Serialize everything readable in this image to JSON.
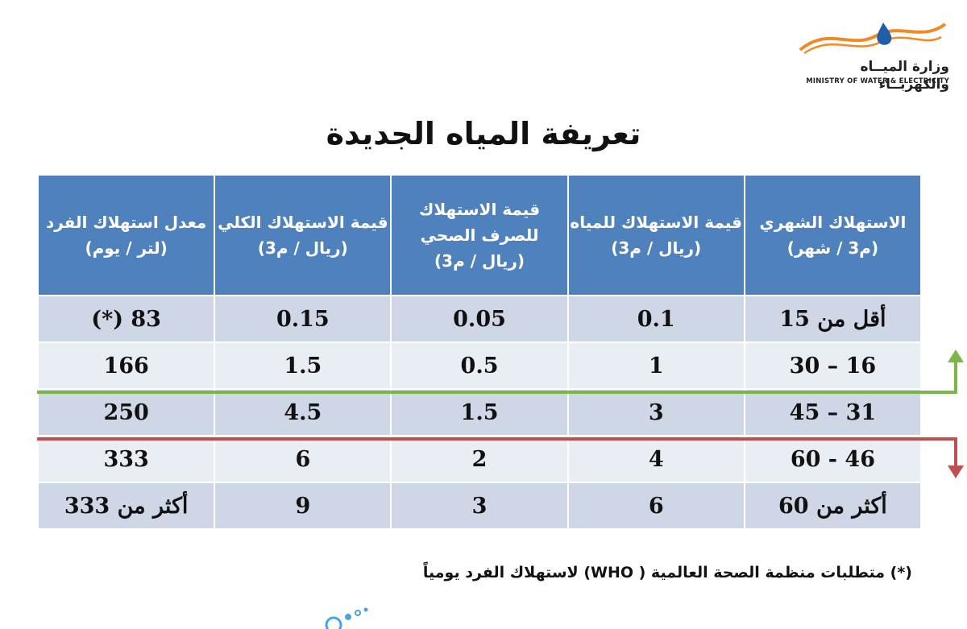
{
  "logo": {
    "name_ar": "وزارة الميــاه والكهربــاء",
    "name_en": "MINISTRY OF WATER & ELECTRICITY",
    "colors": {
      "wave": "#f08a24",
      "drop": "#1f5fa8"
    }
  },
  "title": "تعريفة المياه الجديدة",
  "table": {
    "headers": [
      {
        "label": "الاستهلاك الشهري",
        "unit": "(م3 / شهر)"
      },
      {
        "label": "قيمة الاستهلاك للمياه",
        "unit": "(ريال / م3)"
      },
      {
        "label": "قيمة الاستهلاك للصرف الصحي",
        "unit": "(ريال / م3)"
      },
      {
        "label": "قيمة الاستهلاك الكلي",
        "unit": "(ريال / م3)"
      },
      {
        "label": "معدل استهلاك الفرد",
        "unit": "(لتر / يوم)"
      }
    ],
    "rows": [
      [
        "أقل من  15",
        "0.1",
        "0.05",
        "0.15",
        "83 (*)"
      ],
      [
        "16 – 30",
        "1",
        "0.5",
        "1.5",
        "166"
      ],
      [
        "31 – 45",
        "3",
        "1.5",
        "4.5",
        "250"
      ],
      [
        "46 - 60",
        "4",
        "2",
        "6",
        "333"
      ],
      [
        "أكثر من 60",
        "6",
        "3",
        "9",
        "أكثر من  333"
      ]
    ],
    "colors": {
      "header": "#4f81bd",
      "row_dark": "#cfd6e6",
      "row_light": "#e9edf4"
    }
  },
  "markers": {
    "green_line_color": "#7ab648",
    "red_line_color": "#c0504d"
  },
  "footnote": "(*) متطلبات منظمة الصحة العالمية ( WHO) لاستهلاك الفرد يومياً"
}
